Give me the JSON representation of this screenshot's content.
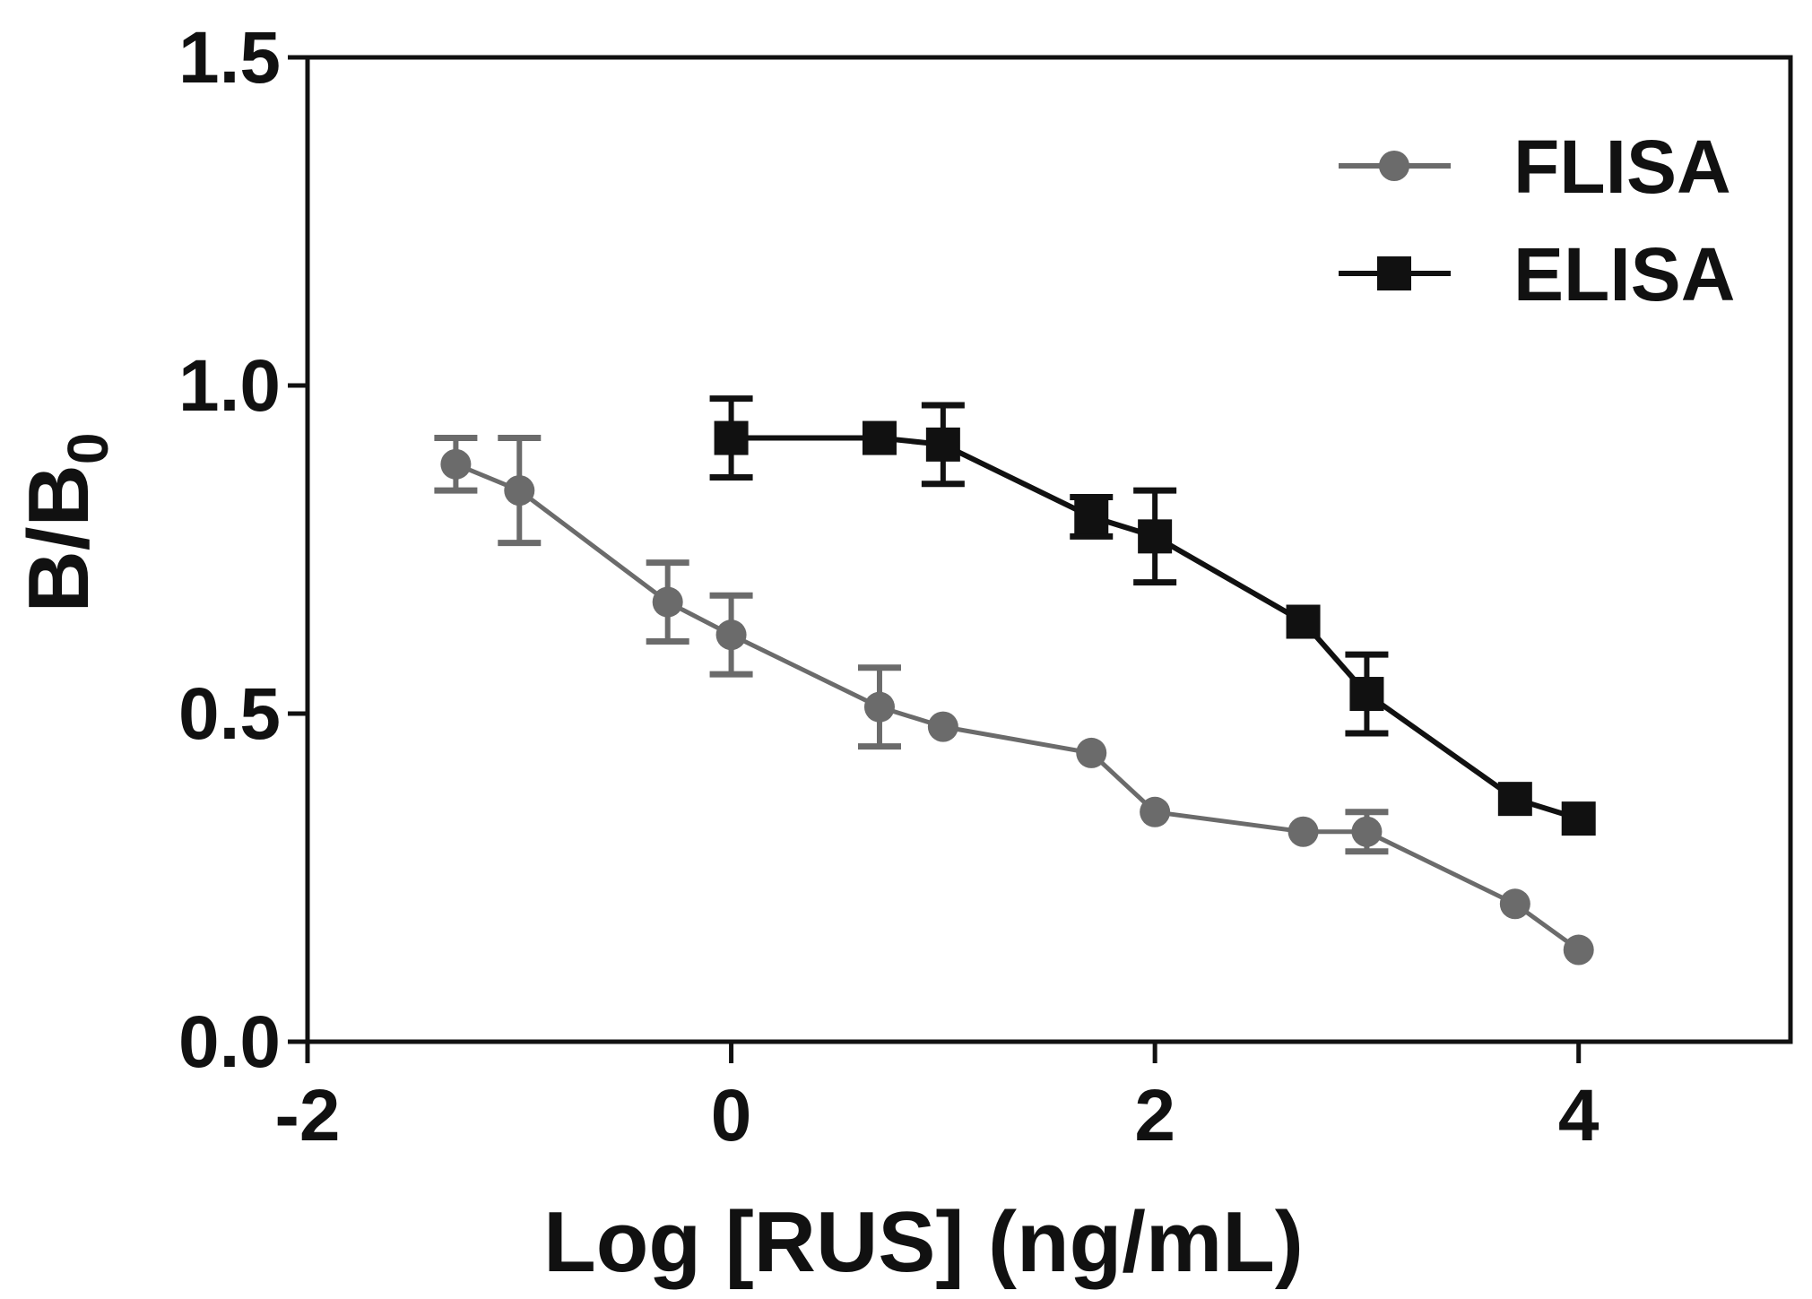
{
  "chart_data": {
    "type": "line",
    "title": "",
    "xlabel": "Log [RUS] (ng/mL)",
    "ylabel_main": "B/B",
    "ylabel_sub": "0",
    "xlim": [
      -2,
      5
    ],
    "ylim": [
      0,
      1.5
    ],
    "xticks": [
      -2,
      0,
      2,
      4
    ],
    "xtick_labels": [
      "-2",
      "0",
      "2",
      "4"
    ],
    "yticks": [
      0,
      0.5,
      1.0,
      1.5
    ],
    "ytick_labels": [
      "0.0",
      "0.5",
      "1.0",
      "1.5"
    ],
    "grid": false,
    "legend_position": "top-right",
    "series": [
      {
        "name": "FLISA",
        "color": "#6b6b6b",
        "marker": "circle",
        "points": [
          {
            "x": -1.3,
            "y": 0.88,
            "err": 0.04
          },
          {
            "x": -1.0,
            "y": 0.84,
            "err": 0.08
          },
          {
            "x": -0.3,
            "y": 0.67,
            "err": 0.06
          },
          {
            "x": 0.0,
            "y": 0.62,
            "err": 0.06
          },
          {
            "x": 0.7,
            "y": 0.51,
            "err": 0.06
          },
          {
            "x": 1.0,
            "y": 0.48,
            "err": 0
          },
          {
            "x": 1.7,
            "y": 0.44,
            "err": 0
          },
          {
            "x": 2.0,
            "y": 0.35,
            "err": 0
          },
          {
            "x": 2.7,
            "y": 0.32,
            "err": 0
          },
          {
            "x": 3.0,
            "y": 0.32,
            "err": 0.03
          },
          {
            "x": 3.7,
            "y": 0.21,
            "err": 0
          },
          {
            "x": 4.0,
            "y": 0.14,
            "err": 0
          }
        ]
      },
      {
        "name": "ELISA",
        "color": "#111111",
        "marker": "square",
        "points": [
          {
            "x": 0.0,
            "y": 0.92,
            "err": 0.06
          },
          {
            "x": 0.7,
            "y": 0.92,
            "err": 0
          },
          {
            "x": 1.0,
            "y": 0.91,
            "err": 0.06
          },
          {
            "x": 1.7,
            "y": 0.8,
            "err": 0.03
          },
          {
            "x": 2.0,
            "y": 0.77,
            "err": 0.07
          },
          {
            "x": 2.7,
            "y": 0.64,
            "err": 0
          },
          {
            "x": 3.0,
            "y": 0.53,
            "err": 0.06
          },
          {
            "x": 3.7,
            "y": 0.37,
            "err": 0
          },
          {
            "x": 4.0,
            "y": 0.34,
            "err": 0
          }
        ]
      }
    ]
  }
}
